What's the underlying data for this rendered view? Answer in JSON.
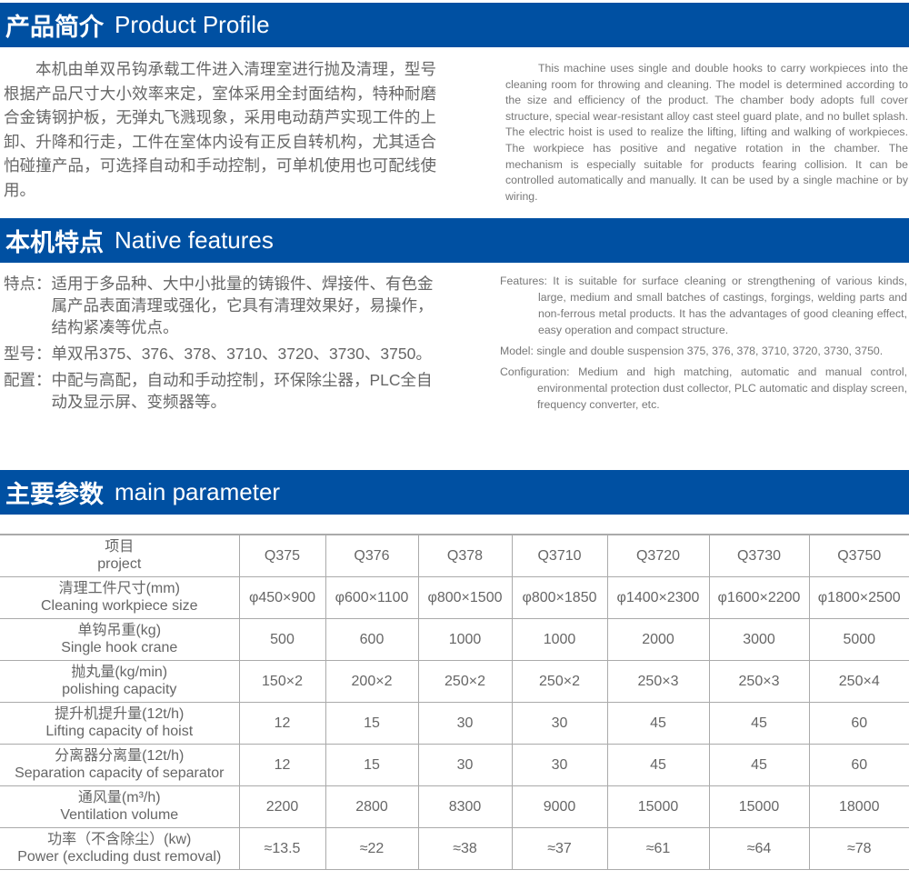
{
  "profile": {
    "title_zh": "产品简介",
    "title_en": "Product Profile",
    "text_zh": "本机由单双吊钩承载工件进入清理室进行抛及清理，型号根据产品尺寸大小效率来定，室体采用全封面结构，特种耐磨合金铸钢护板，无弹丸飞溅现象，采用电动葫芦实现工件的上卸、升降和行走，工件在室体内设有正反自转机构，尤其适合怕碰撞产品，可选择自动和手动控制，可单机使用也可配线使用。",
    "text_en": "This machine uses single and double hooks to carry workpieces into the cleaning room for throwing and cleaning. The model is determined according to the size and efficiency of the product. The chamber body adopts full cover structure, special wear-resistant alloy cast steel guard plate, and no bullet splash. The electric hoist is used to realize the lifting, lifting and walking of workpieces. The workpiece has positive and negative rotation in the chamber. The mechanism is especially suitable for products fearing collision. It can be controlled automatically and manually. It can be used by a single machine or by wiring."
  },
  "features": {
    "title_zh": "本机特点",
    "title_en": "Native features",
    "zh": [
      {
        "label": "特点：",
        "text": "适用于多品种、大中小批量的铸锻件、焊接件、有色金属产品表面清理或强化，它具有清理效果好，易操作，结构紧凑等优点。"
      },
      {
        "label": "型号：",
        "text": "单双吊375、376、378、3710、3720、3730、3750。"
      },
      {
        "label": "配置：",
        "text": "中配与高配，自动和手动控制，环保除尘器，PLC全自动及显示屏、变频器等。"
      }
    ],
    "en": [
      "Features: It is suitable for surface cleaning or strengthening of various kinds, large, medium and small batches of castings, forgings, welding parts and non-ferrous metal products. It has the advantages of good cleaning effect, easy operation and compact structure.",
      "Model: single and double suspension 375, 376, 378, 3710, 3720, 3730, 3750.",
      "Configuration: Medium and high matching, automatic and manual control, environmental protection dust collector, PLC automatic and display screen, frequency converter, etc."
    ]
  },
  "params": {
    "title_zh": "主要参数",
    "title_en": "main parameter",
    "header": {
      "zh": "项目",
      "en": "project",
      "models": [
        "Q375",
        "Q376",
        "Q378",
        "Q3710",
        "Q3720",
        "Q3730",
        "Q3750"
      ]
    },
    "rows": [
      {
        "zh": "清理工件尺寸(mm)",
        "en": "Cleaning workpiece size",
        "values": [
          "φ450×900",
          "φ600×1100",
          "φ800×1500",
          "φ800×1850",
          "φ1400×2300",
          "φ1600×2200",
          "φ1800×2500"
        ]
      },
      {
        "zh": "单钩吊重(kg)",
        "en": "Single hook crane",
        "values": [
          "500",
          "600",
          "1000",
          "1000",
          "2000",
          "3000",
          "5000"
        ]
      },
      {
        "zh": "抛丸量(kg/min)",
        "en": "polishing capacity",
        "values": [
          "150×2",
          "200×2",
          "250×2",
          "250×2",
          "250×3",
          "250×3",
          "250×4"
        ]
      },
      {
        "zh": "提升机提升量(12t/h)",
        "en": "Lifting capacity of hoist",
        "values": [
          "12",
          "15",
          "30",
          "30",
          "45",
          "45",
          "60"
        ]
      },
      {
        "zh": "分离器分离量(12t/h)",
        "en": "Separation capacity of separator",
        "values": [
          "12",
          "15",
          "30",
          "30",
          "45",
          "45",
          "60"
        ]
      },
      {
        "zh": "通风量(m³/h)",
        "en": "Ventilation volume",
        "values": [
          "2200",
          "2800",
          "8300",
          "9000",
          "15000",
          "15000",
          "18000"
        ]
      },
      {
        "zh": "功率（不含除尘）(kw)",
        "en": "Power (excluding dust removal)",
        "values": [
          "≈13.5",
          "≈22",
          "≈38",
          "≈37",
          "≈61",
          "≈64",
          "≈78"
        ]
      }
    ]
  },
  "colors": {
    "brand_blue": "#0050a2"
  }
}
